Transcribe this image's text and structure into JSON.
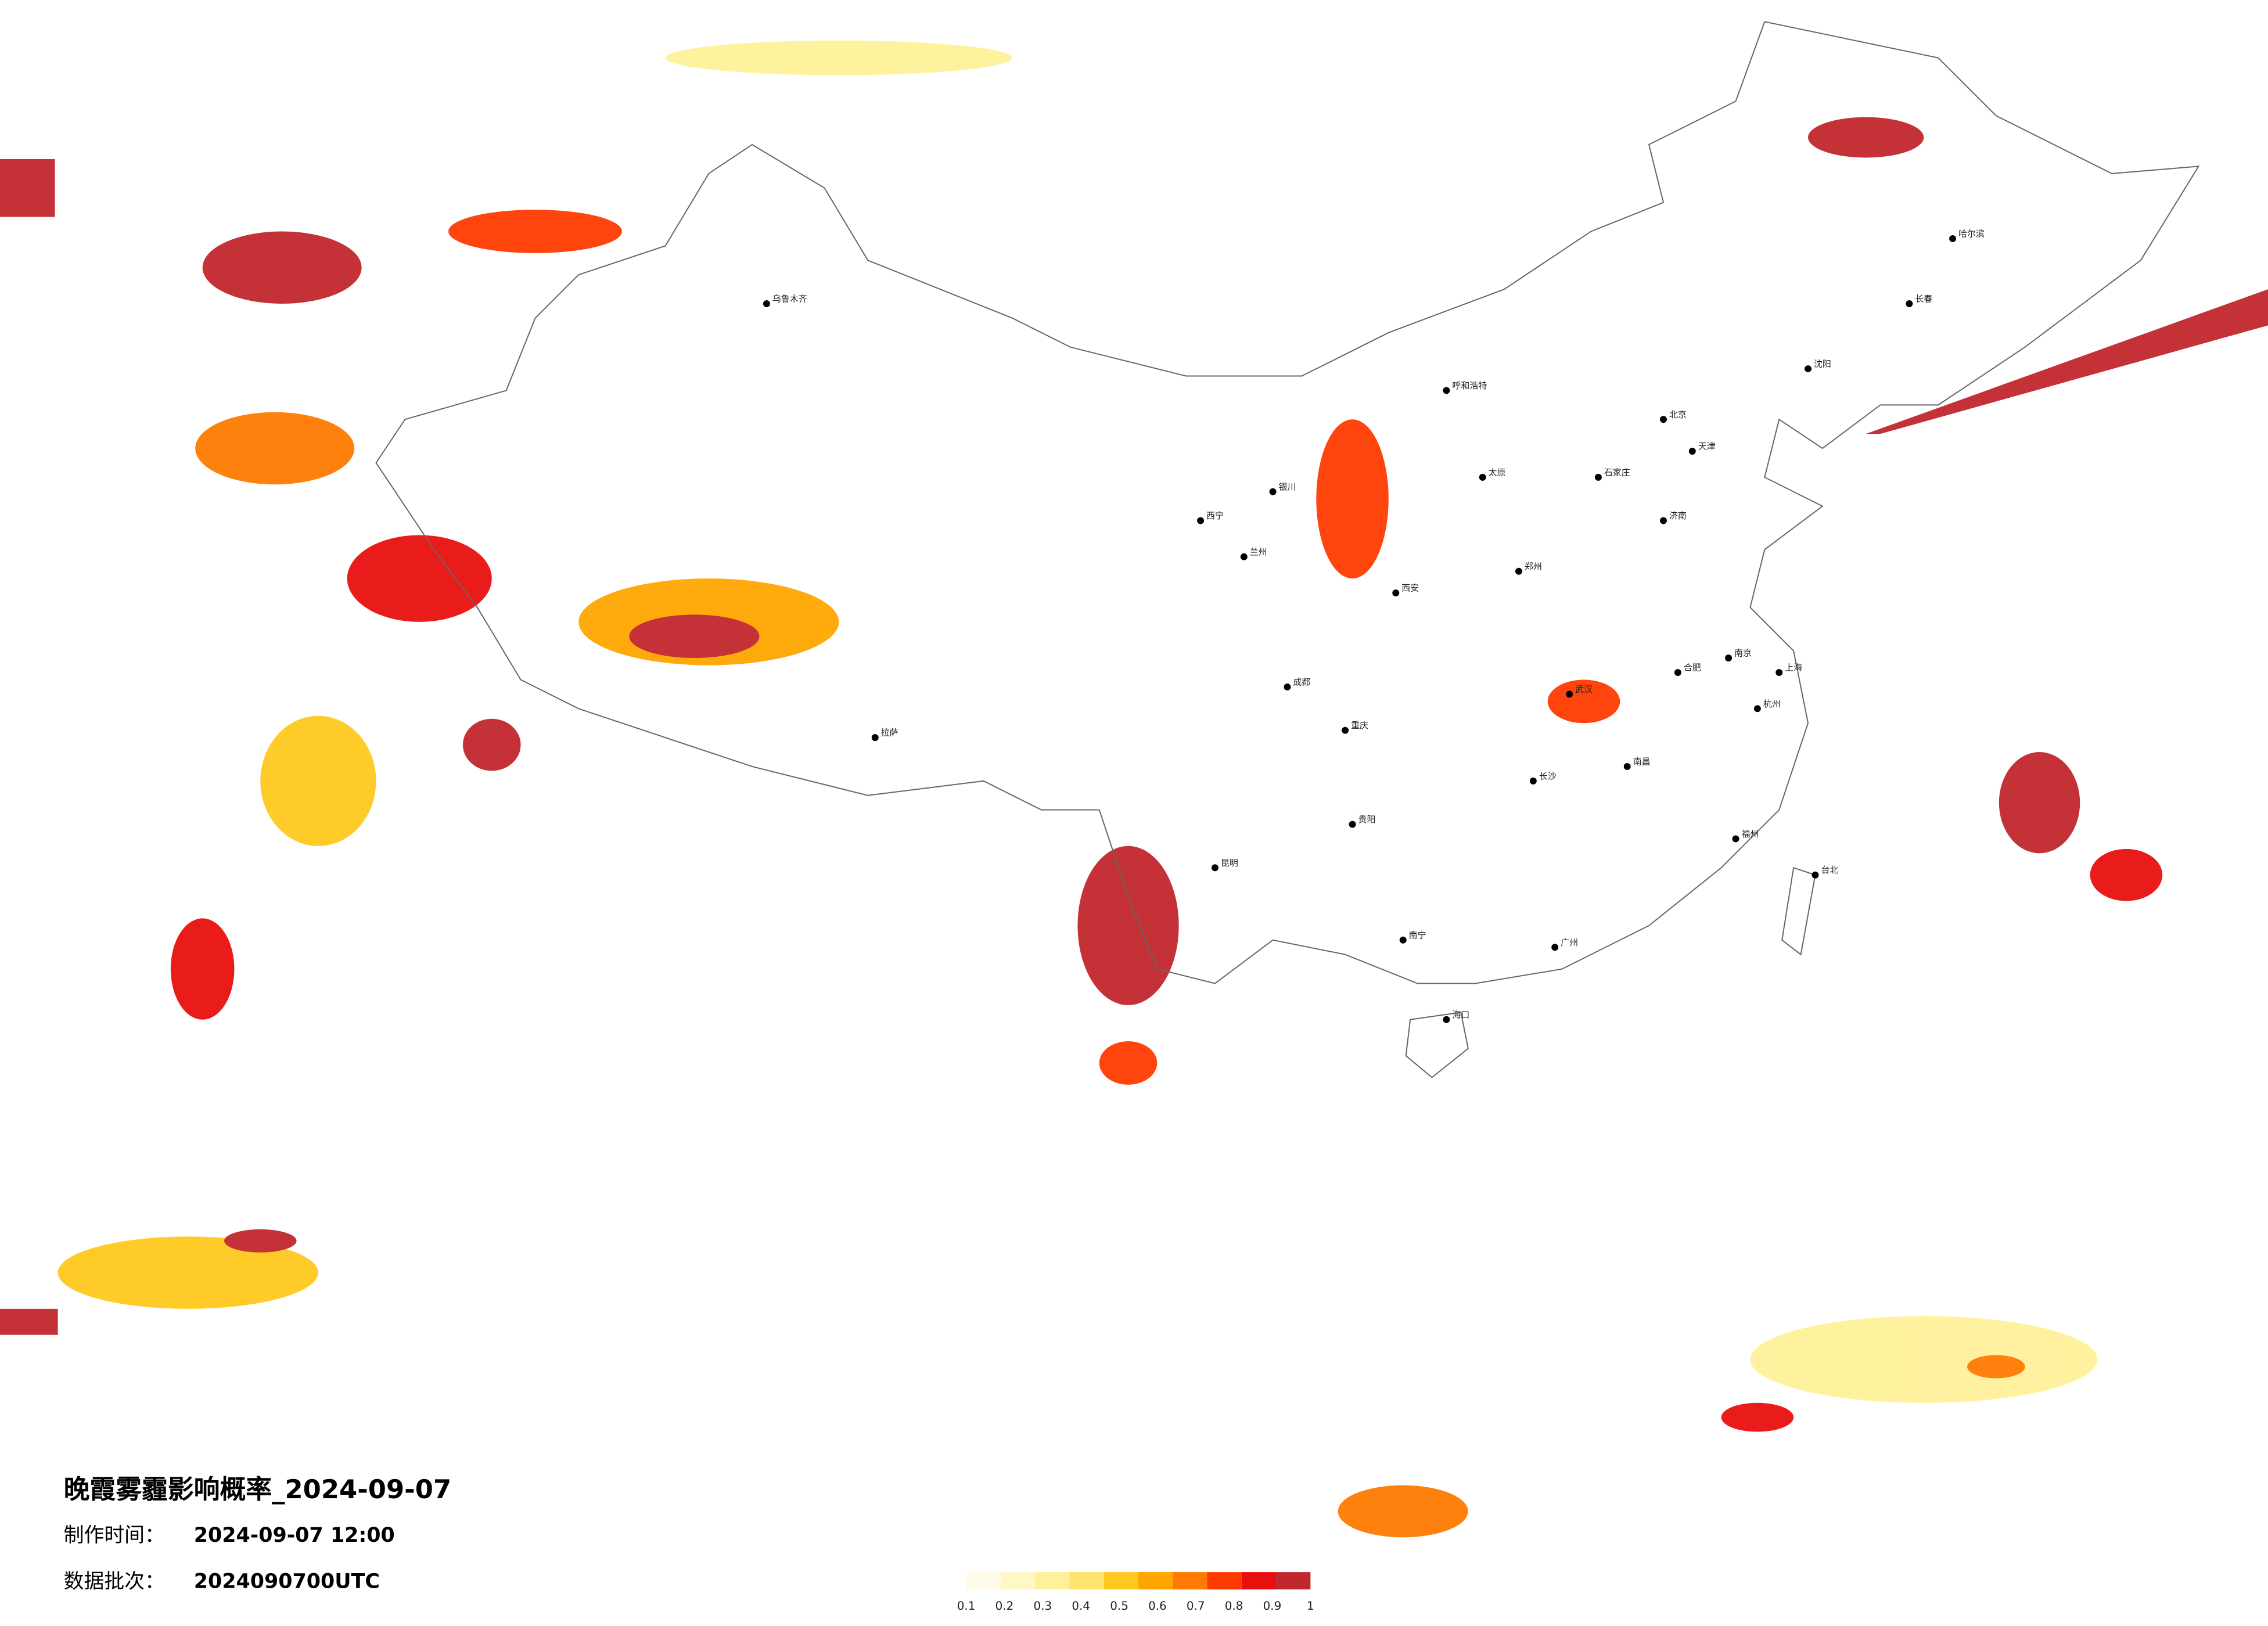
{
  "title": "晚霞雾霾影响概率_2024-09-07",
  "made_label": "制作时间：",
  "made_time": "2024-09-07 12:00",
  "batch_label": "数据批次：",
  "batch": "2024090700UTC",
  "legend": {
    "colors": [
      "#fffbea",
      "#fff7c4",
      "#fff19a",
      "#ffe36a",
      "#ffc81e",
      "#ffa600",
      "#ff7a00",
      "#ff3a00",
      "#e80f0f",
      "#c1272d"
    ],
    "labels": [
      0.1,
      0.2,
      0.3,
      0.4,
      0.5,
      0.6,
      0.7,
      0.8,
      0.9,
      1
    ]
  },
  "cities": [
    "北京",
    "天津",
    "上海",
    "广州",
    "重庆",
    "成都",
    "西安",
    "武汉",
    "长沙",
    "郑州",
    "南京",
    "杭州",
    "沈阳",
    "哈尔滨",
    "长春",
    "乌鲁木齐",
    "拉萨",
    "西宁",
    "兰州",
    "银川",
    "呼和浩特",
    "昆明",
    "贵阳",
    "南宁",
    "海口",
    "福州",
    "台北",
    "济南",
    "太原",
    "石家庄",
    "合肥",
    "南昌"
  ]
}
